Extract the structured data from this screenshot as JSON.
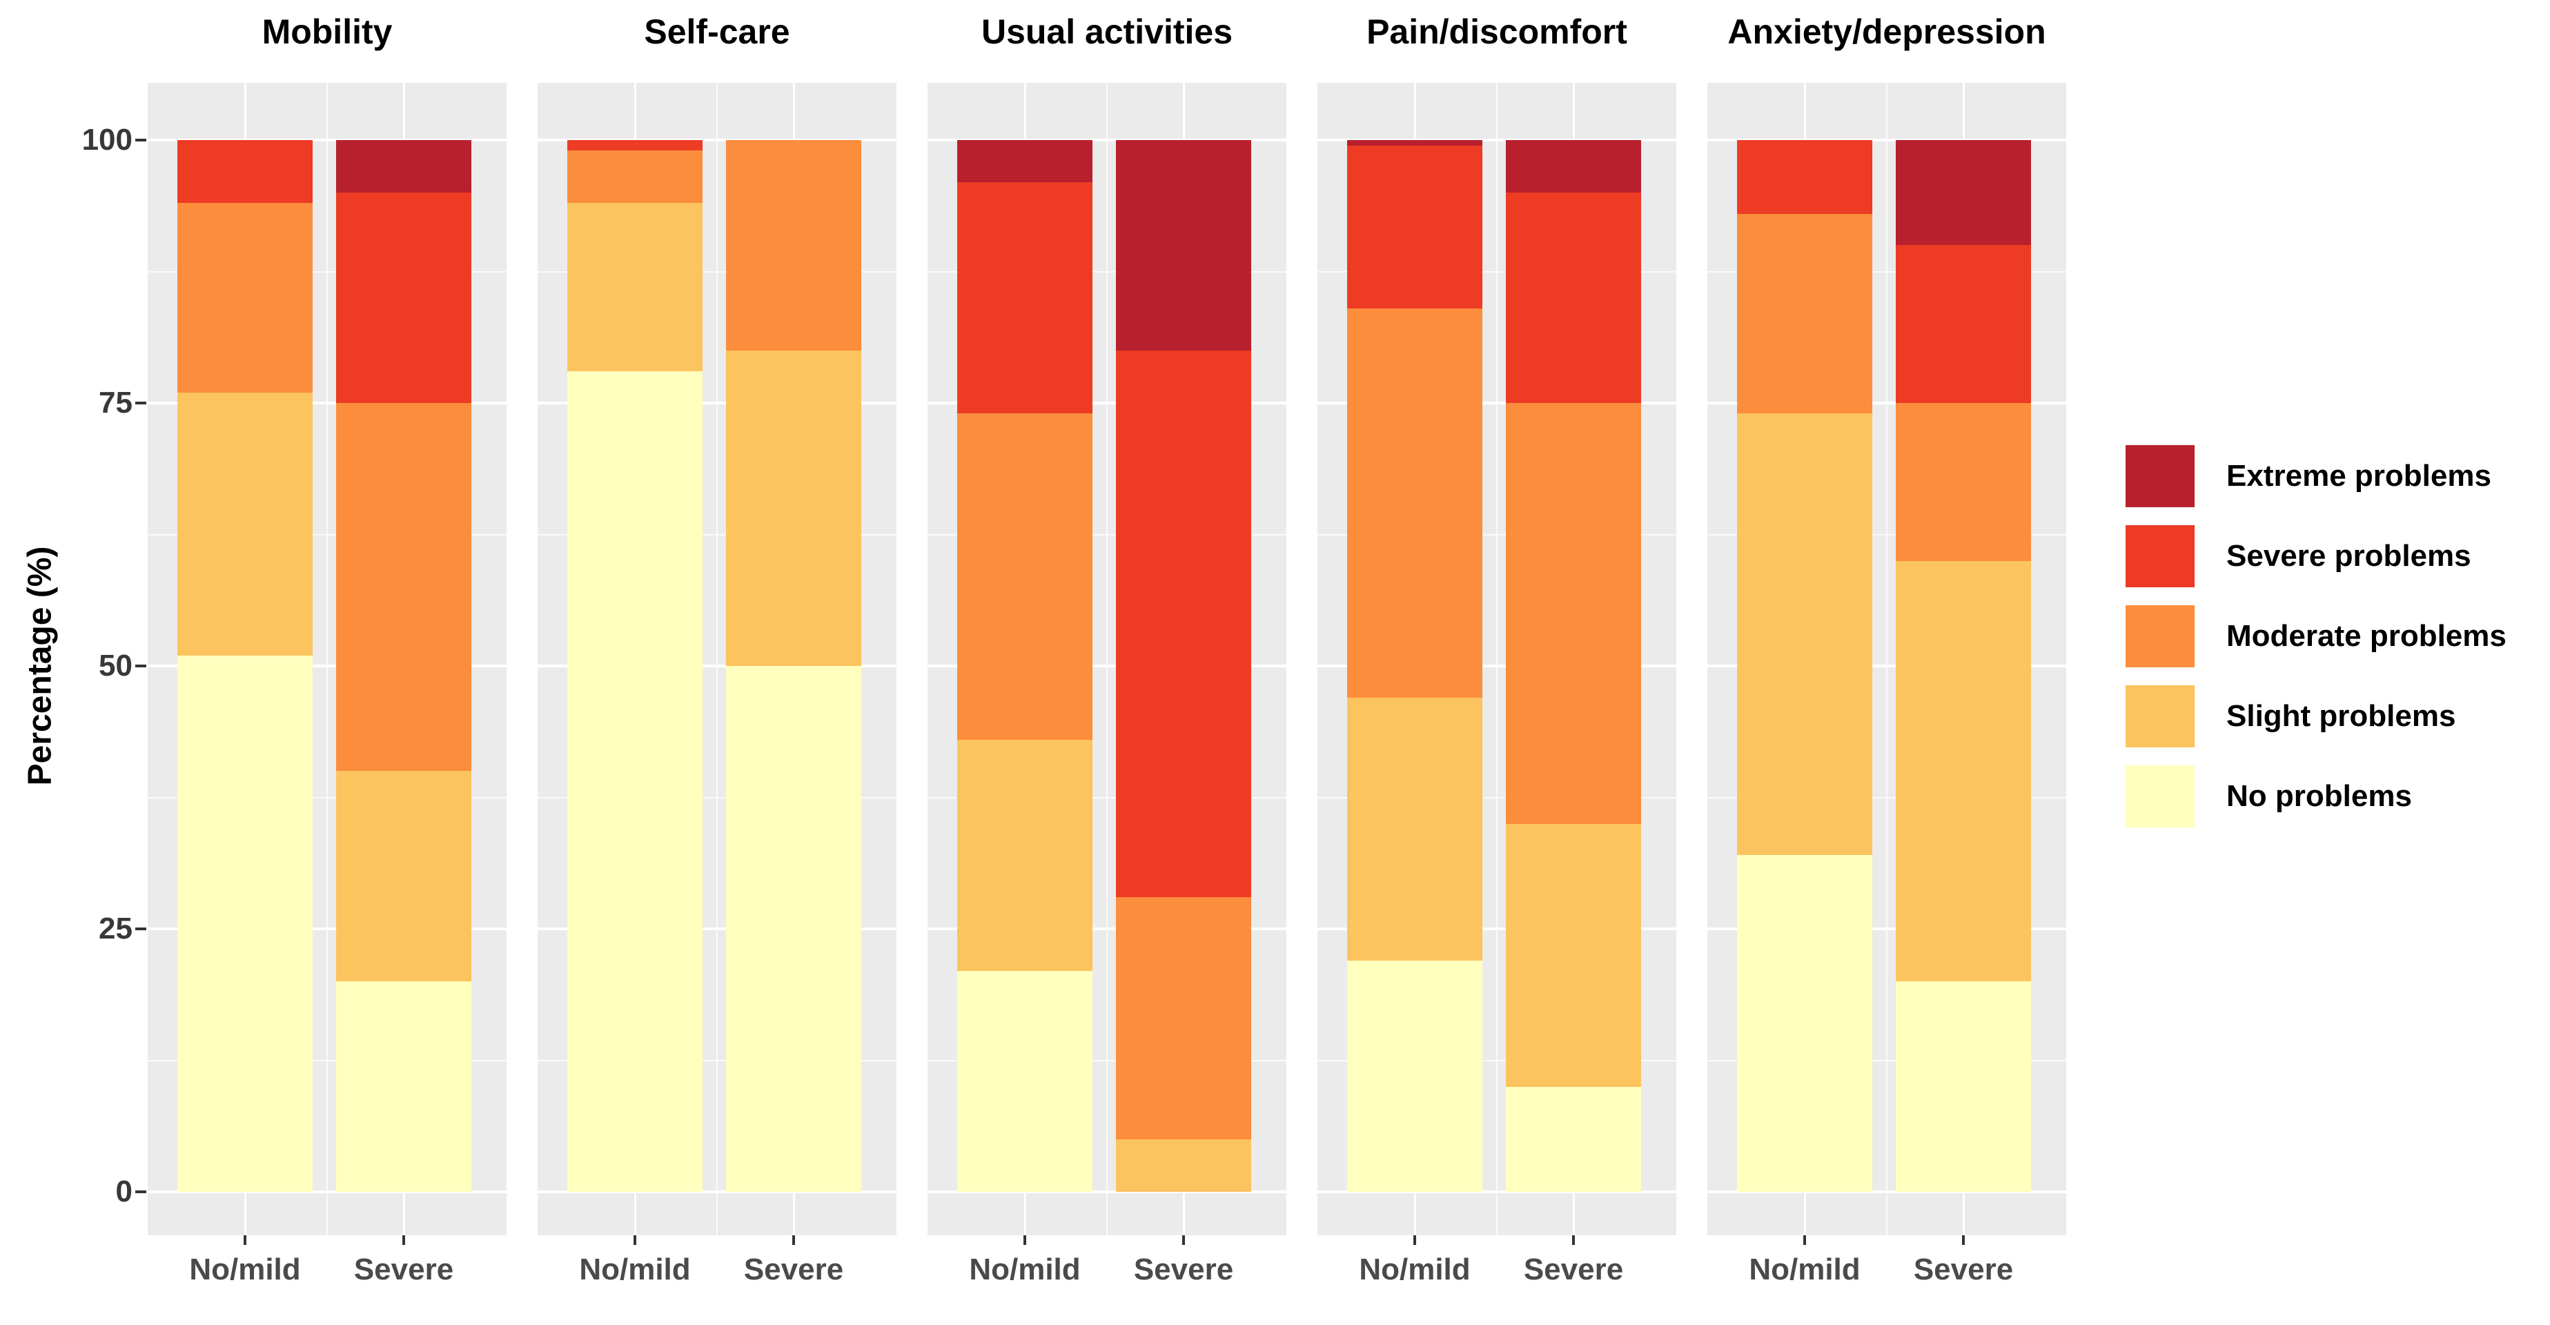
{
  "y_axis": {
    "title": "Percentage (%)",
    "tick_labels": [
      "0",
      "25",
      "50",
      "75",
      "100"
    ]
  },
  "x_axis": {
    "categories": [
      "No/mild",
      "Severe"
    ]
  },
  "legend": {
    "position": "right",
    "items": [
      {
        "label": "Extreme problems",
        "color": "#B7202C"
      },
      {
        "label": "Severe problems",
        "color": "#ED3B24"
      },
      {
        "label": "Moderate problems",
        "color": "#FB8D3D"
      },
      {
        "label": "Slight problems",
        "color": "#FCC45E"
      },
      {
        "label": "No problems",
        "color": "#FFFFBE"
      }
    ]
  },
  "chart_data": {
    "type": "bar",
    "stacked": true,
    "orientation": "vertical",
    "ylabel": "Percentage (%)",
    "ylim": [
      0,
      100
    ],
    "yticks": [
      0,
      25,
      50,
      75,
      100
    ],
    "minor_yticks": [
      12.5,
      37.5,
      62.5,
      87.5
    ],
    "grid": true,
    "panel_background": "#EBEBEB",
    "gridline_color": "#FFFFFF",
    "legend_position": "right",
    "categories": [
      "No/mild",
      "Severe"
    ],
    "stack_order_bottom_to_top": [
      "No problems",
      "Slight problems",
      "Moderate problems",
      "Severe problems",
      "Extreme problems"
    ],
    "colors": {
      "No problems": "#FFFFBE",
      "Slight problems": "#FCC45E",
      "Moderate problems": "#FB8D3D",
      "Severe problems": "#ED3B24",
      "Extreme problems": "#B7202C"
    },
    "facets": [
      {
        "title": "Mobility",
        "groups": [
          {
            "category": "No/mild",
            "values": {
              "No problems": 51,
              "Slight problems": 25,
              "Moderate problems": 18,
              "Severe problems": 6,
              "Extreme problems": 0
            }
          },
          {
            "category": "Severe",
            "values": {
              "No problems": 20,
              "Slight problems": 20,
              "Moderate problems": 35,
              "Severe problems": 20,
              "Extreme problems": 5
            }
          }
        ]
      },
      {
        "title": "Self-care",
        "groups": [
          {
            "category": "No/mild",
            "values": {
              "No problems": 78,
              "Slight problems": 16,
              "Moderate problems": 5,
              "Severe problems": 1,
              "Extreme problems": 0
            }
          },
          {
            "category": "Severe",
            "values": {
              "No problems": 50,
              "Slight problems": 30,
              "Moderate problems": 20,
              "Severe problems": 0,
              "Extreme problems": 0
            }
          }
        ]
      },
      {
        "title": "Usual activities",
        "groups": [
          {
            "category": "No/mild",
            "values": {
              "No problems": 21,
              "Slight problems": 22,
              "Moderate problems": 31,
              "Severe problems": 22,
              "Extreme problems": 4
            }
          },
          {
            "category": "Severe",
            "values": {
              "No problems": 0,
              "Slight problems": 5,
              "Moderate problems": 23,
              "Severe problems": 52,
              "Extreme problems": 20
            }
          }
        ]
      },
      {
        "title": "Pain/discomfort",
        "groups": [
          {
            "category": "No/mild",
            "values": {
              "No problems": 22,
              "Slight problems": 25,
              "Moderate problems": 37,
              "Severe problems": 15.5,
              "Extreme problems": 0.5
            }
          },
          {
            "category": "Severe",
            "values": {
              "No problems": 10,
              "Slight problems": 25,
              "Moderate problems": 40,
              "Severe problems": 20,
              "Extreme problems": 5
            }
          }
        ]
      },
      {
        "title": "Anxiety/depression",
        "groups": [
          {
            "category": "No/mild",
            "values": {
              "No problems": 32,
              "Slight problems": 42,
              "Moderate problems": 19,
              "Severe problems": 7,
              "Extreme problems": 0
            }
          },
          {
            "category": "Severe",
            "values": {
              "No problems": 20,
              "Slight problems": 40,
              "Moderate problems": 15,
              "Severe problems": 15,
              "Extreme problems": 10
            }
          }
        ]
      }
    ]
  }
}
